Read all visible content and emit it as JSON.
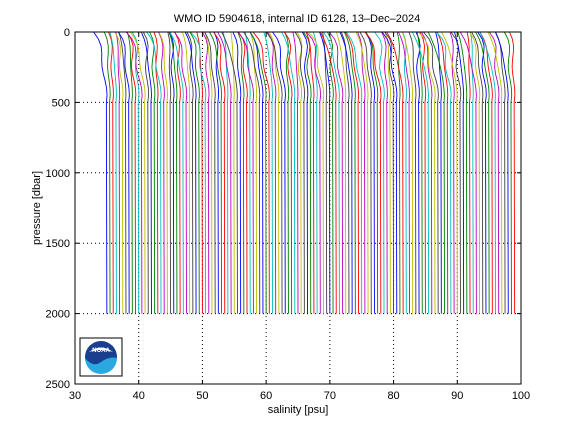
{
  "chart_data": {
    "type": "line",
    "title": "WMO ID 5904618, internal ID 6128, 13–Dec–2024",
    "xlabel": "salinity [psu]",
    "ylabel": "pressure [dbar]",
    "xlim": [
      30,
      100
    ],
    "ylim": [
      2500,
      0
    ],
    "y_reversed": true,
    "x_ticks": [
      30,
      40,
      50,
      60,
      70,
      80,
      90,
      100
    ],
    "x_tick_labels": [
      "30",
      "40",
      "50",
      "60",
      "70",
      "80",
      "90",
      "100"
    ],
    "y_ticks": [
      0,
      500,
      1000,
      1500,
      2000,
      2500
    ],
    "y_tick_labels": [
      "0",
      "500",
      "1000",
      "1500",
      "2000",
      "2500"
    ],
    "grid": "dotted",
    "profile_style": "waterfall of stacked salinity profiles, each profile offset successively in salinity",
    "profiles": {
      "first_profile_salinity_at_2000dbar": 35.0,
      "last_profile_salinity_at_2000dbar": 99.0,
      "profile_spacing_psu": 0.5,
      "max_pressure": 2000
    },
    "series_colors": [
      "#0000ff",
      "#008000",
      "#ff0000",
      "#00bfbf",
      "#bf00bf",
      "#bfbf00",
      "#404040"
    ],
    "logo": "noaa-logo"
  }
}
